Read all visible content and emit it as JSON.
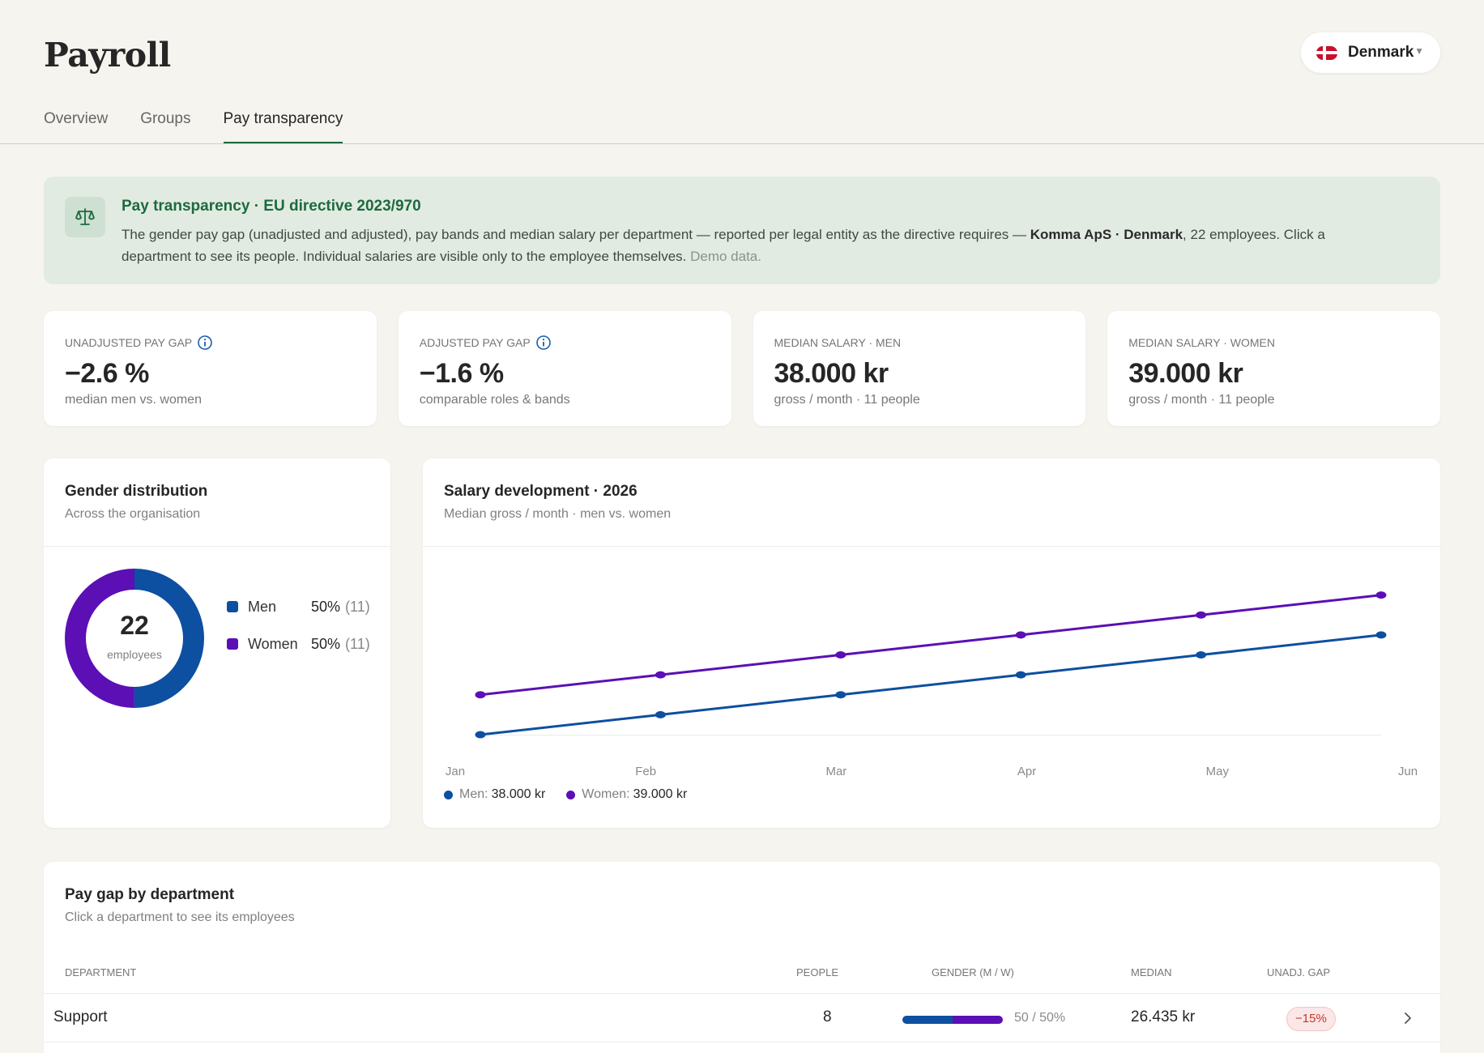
{
  "page": {
    "title": "Payroll",
    "country": {
      "name": "Denmark",
      "flag": "denmark-flag"
    }
  },
  "tabs": [
    {
      "label": "Overview",
      "active": false
    },
    {
      "label": "Groups",
      "active": false
    },
    {
      "label": "Pay transparency",
      "active": true
    }
  ],
  "banner": {
    "icon": "scales-icon",
    "title": "Pay transparency · EU directive 2023/970",
    "text_before": "The gender pay gap (unadjusted and adjusted), pay bands and median salary per department — reported per legal entity as the directive requires — ",
    "entity": "Komma ApS · Denmark",
    "text_after": ", 22 employees. Click a department to see its people. Individual salaries are visible only to the employee themselves. ",
    "demo_note": "Demo data."
  },
  "kpis": [
    {
      "label": "Unadjusted pay gap",
      "value": "−2.6 %",
      "sub": "median men vs. women",
      "info": true
    },
    {
      "label": "Adjusted pay gap",
      "value": "−1.6 %",
      "sub": "comparable roles & bands",
      "info": true
    },
    {
      "label": "Median salary · Men",
      "value": "38.000 kr",
      "sub": "gross / month · 11 people",
      "info": false
    },
    {
      "label": "Median salary · Women",
      "value": "39.000 kr",
      "sub": "gross / month · 11 people",
      "info": false
    }
  ],
  "gender_card": {
    "title": "Gender distribution",
    "subtitle": "Across the organisation",
    "total": "22",
    "total_label": "employees",
    "segments": [
      {
        "name": "Men",
        "pct": "50%",
        "count": "(11)",
        "share": 0.5,
        "color": "#0d4fa0"
      },
      {
        "name": "Women",
        "pct": "50%",
        "count": "(11)",
        "share": 0.5,
        "color": "#5b0fb5"
      }
    ]
  },
  "salary_card": {
    "title": "Salary development · 2026",
    "subtitle": "Median gross / month · men vs. women",
    "legend": [
      {
        "name": "Men:",
        "value": "38.000 kr",
        "color": "#0d4fa0"
      },
      {
        "name": "Women:",
        "value": "39.000 kr",
        "color": "#5b0fb5"
      }
    ]
  },
  "chart_data": {
    "type": "line",
    "x": [
      "Jan",
      "Feb",
      "Mar",
      "Apr",
      "May",
      "Jun"
    ],
    "series": [
      {
        "name": "Men",
        "color": "#0d4fa0",
        "values": [
          35500,
          36000,
          36500,
          37000,
          37500,
          38000
        ]
      },
      {
        "name": "Women",
        "color": "#5b0fb5",
        "values": [
          36500,
          37000,
          37500,
          38000,
          38500,
          39000
        ]
      }
    ],
    "ylim": [
      35500,
      39500
    ],
    "grid": false,
    "legend": "bottom-left"
  },
  "dept_card": {
    "title": "Pay gap by department",
    "subtitle": "Click a department to see its employees",
    "columns": [
      "Department",
      "People",
      "Gender (M / W)",
      "Median",
      "Unadj. gap"
    ],
    "rows": [
      {
        "department": "Support",
        "people": "8",
        "men_share": 0.5,
        "gender_text": "50 / 50%",
        "median": "26.435 kr",
        "gap": "−15%"
      }
    ]
  }
}
